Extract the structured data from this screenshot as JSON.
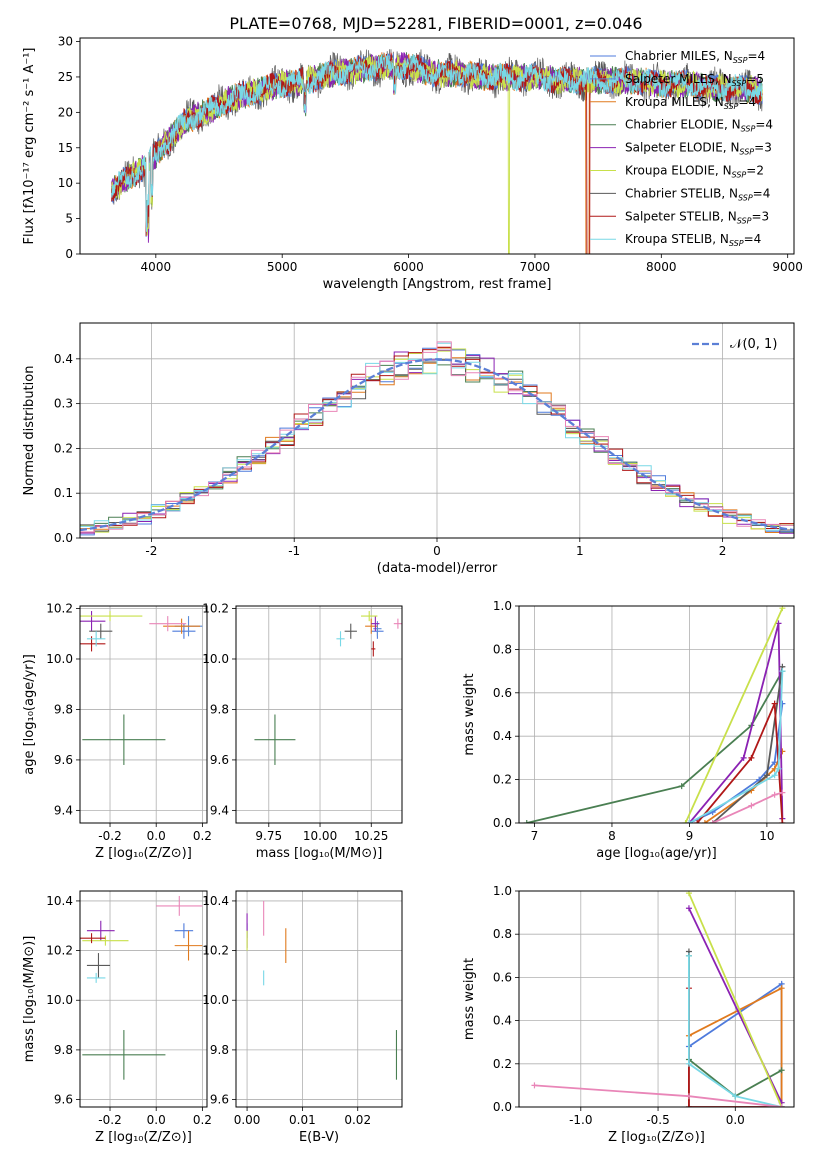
{
  "figure": {
    "title": "PLATE=0768, MJD=52281, FIBERID=0001, z=0.046"
  },
  "legend_names": [
    "Chabrier MILES",
    "Salpeter MILES",
    "Kroupa MILES",
    "Chabrier ELODIE",
    "Salpeter ELODIE",
    "Kroupa ELODIE",
    "Chabrier STELIB",
    "Salpeter STELIB",
    "Kroupa STELIB"
  ],
  "nssp": [
    4,
    5,
    4,
    4,
    3,
    2,
    4,
    3,
    4
  ],
  "nssp_prefix": "N",
  "nssp_sub": "SSP",
  "nssp_suffix": "=",
  "colors": [
    "#4f7bdc",
    "#5b8bd6",
    "#e07a1e",
    "#4a7f52",
    "#8b22b3",
    "#c8e04a",
    "#5a5a5a",
    "#b01818",
    "#78d8e6"
  ],
  "extra_colors": {
    "pink": "#e986b8",
    "green2": "#5f8a60"
  },
  "chart_data": [
    {
      "id": "spectrum",
      "type": "line",
      "xlabel": "wavelength [Angstrom, rest frame]",
      "ylabel": "Flux [fλ10⁻¹⁷ erg cm⁻² s⁻¹ A⁻¹]",
      "xlim": [
        3400,
        9050
      ],
      "ylim": [
        0,
        30.5
      ],
      "xticks": [
        4000,
        5000,
        6000,
        7000,
        8000,
        9000
      ],
      "yticks": [
        0,
        5,
        10,
        15,
        20,
        25,
        30
      ],
      "x_range": [
        3650,
        8800
      ],
      "envelope": {
        "x": [
          3650,
          3800,
          3950,
          4100,
          4250,
          4400,
          4600,
          4800,
          5000,
          5200,
          5400,
          5600,
          5800,
          6000,
          6200,
          6400,
          6600,
          6800,
          7000,
          7200,
          7400,
          7600,
          7800,
          8000,
          8200,
          8400,
          8600,
          8800
        ],
        "y": [
          9,
          11,
          13,
          16,
          19,
          20,
          22,
          23,
          24,
          24.5,
          25.5,
          26,
          26.5,
          26.5,
          25.5,
          25.5,
          25,
          25,
          25,
          24.5,
          24.5,
          24.5,
          24.5,
          24,
          24,
          23.5,
          23.5,
          23
        ]
      },
      "grid": false,
      "legend_position": "upper-right"
    },
    {
      "id": "residuals",
      "type": "histogram",
      "xlabel": "(data-model)/error",
      "ylabel": "Normed distribution",
      "xlim": [
        -2.5,
        2.5
      ],
      "ylim": [
        0,
        0.48
      ],
      "xticks": [
        -2,
        -1,
        0,
        1,
        2
      ],
      "yticks": [
        0,
        0.1,
        0.2,
        0.3,
        0.4
      ],
      "bin_width": 0.1,
      "normal_label": "𝒩(0, 1)",
      "grid": true,
      "legend_position": "upper-right"
    },
    {
      "id": "age-vs-Z",
      "type": "errorbar",
      "xlabel": "Z [log₁₀(Z/Z⊙)]",
      "ylabel": "age  [log₁₀(age/yr)]",
      "xlim": [
        -0.33,
        0.22
      ],
      "ylim": [
        9.35,
        10.21
      ],
      "xticks": [
        -0.2,
        0.0,
        0.2
      ],
      "yticks": [
        9.4,
        9.6,
        9.8,
        10.0,
        10.2
      ],
      "grid": true,
      "points": [
        {
          "c": 0,
          "x": 0.12,
          "y": 10.11,
          "xerr": 0.05,
          "yerr": 0.03
        },
        {
          "c": 1,
          "x": 0.14,
          "y": 10.13,
          "xerr": 0.06,
          "yerr": 0.04
        },
        {
          "c": 2,
          "x": 0.11,
          "y": 10.13,
          "xerr": 0.08,
          "yerr": 0.03
        },
        {
          "c": 3,
          "x": -0.14,
          "y": 9.68,
          "xerr": 0.18,
          "yerr": 0.1
        },
        {
          "c": 4,
          "x": -0.28,
          "y": 10.15,
          "xerr": 0.06,
          "yerr": 0.04
        },
        {
          "c": 5,
          "x": -0.2,
          "y": 10.17,
          "xerr": 0.14,
          "yerr": 0.02
        },
        {
          "c": 6,
          "x": -0.24,
          "y": 10.11,
          "xerr": 0.05,
          "yerr": 0.03
        },
        {
          "c": 7,
          "x": -0.28,
          "y": 10.06,
          "xerr": 0.06,
          "yerr": 0.03
        },
        {
          "c": 8,
          "x": -0.26,
          "y": 10.08,
          "xerr": 0.04,
          "yerr": 0.03
        },
        {
          "c": "pink",
          "x": 0.05,
          "y": 10.14,
          "xerr": 0.08,
          "yerr": 0.03
        }
      ]
    },
    {
      "id": "age-vs-mass",
      "type": "errorbar",
      "xlabel": "mass [log₁₀(M/M⊙)]",
      "ylabel": "",
      "xlim": [
        9.59,
        10.4
      ],
      "ylim": [
        9.35,
        10.21
      ],
      "xticks": [
        9.75,
        10.0,
        10.25
      ],
      "yticks": [
        9.4,
        9.6,
        9.8,
        10.0,
        10.2
      ],
      "grid": true,
      "points": [
        {
          "c": 0,
          "x": 10.28,
          "y": 10.11,
          "xerr": 0.03,
          "yerr": 0.03
        },
        {
          "c": 1,
          "x": 10.28,
          "y": 10.12,
          "xerr": 0.02,
          "yerr": 0.03
        },
        {
          "c": 2,
          "x": 10.25,
          "y": 10.13,
          "xerr": 0.03,
          "yerr": 0.03
        },
        {
          "c": 3,
          "x": 9.78,
          "y": 9.68,
          "xerr": 0.1,
          "yerr": 0.1
        },
        {
          "c": 4,
          "x": 10.27,
          "y": 10.14,
          "xerr": 0.02,
          "yerr": 0.03
        },
        {
          "c": 5,
          "x": 10.24,
          "y": 10.17,
          "xerr": 0.04,
          "yerr": 0.02
        },
        {
          "c": 6,
          "x": 10.15,
          "y": 10.11,
          "xerr": 0.03,
          "yerr": 0.03
        },
        {
          "c": 7,
          "x": 10.26,
          "y": 10.04,
          "xerr": 0.01,
          "yerr": 0.03
        },
        {
          "c": 8,
          "x": 10.1,
          "y": 10.08,
          "xerr": 0.02,
          "yerr": 0.03
        },
        {
          "c": "pink",
          "x": 10.38,
          "y": 10.14,
          "xerr": 0.02,
          "yerr": 0.02
        }
      ]
    },
    {
      "id": "weight-vs-age",
      "type": "line",
      "xlabel": "age  [log₁₀(age/yr)]",
      "ylabel": "mass weight",
      "xlim": [
        6.8,
        10.35
      ],
      "ylim": [
        0,
        1
      ],
      "xticks": [
        7,
        8,
        9,
        10
      ],
      "yticks": [
        0,
        0.2,
        0.4,
        0.6,
        0.8,
        1.0
      ],
      "grid": true,
      "series": [
        {
          "c": 0,
          "x": [
            9.0,
            9.3,
            9.9,
            10.1,
            10.2
          ],
          "y": [
            0.0,
            0.05,
            0.2,
            0.28,
            0.55
          ]
        },
        {
          "c": 2,
          "x": [
            9.2,
            9.8,
            10.1,
            10.2
          ],
          "y": [
            0.0,
            0.15,
            0.25,
            0.33
          ]
        },
        {
          "c": 3,
          "x": [
            6.9,
            8.9,
            9.8,
            10.2
          ],
          "y": [
            0.0,
            0.17,
            0.45,
            0.7
          ]
        },
        {
          "c": 4,
          "x": [
            9.0,
            9.7,
            10.15,
            10.2
          ],
          "y": [
            0.0,
            0.3,
            0.92,
            0.02
          ]
        },
        {
          "c": 5,
          "x": [
            8.95,
            10.2
          ],
          "y": [
            0.0,
            0.99
          ]
        },
        {
          "c": 6,
          "x": [
            9.3,
            10.0,
            10.2
          ],
          "y": [
            0.0,
            0.22,
            0.72
          ]
        },
        {
          "c": 7,
          "x": [
            9.1,
            9.8,
            10.1,
            10.2
          ],
          "y": [
            0.0,
            0.3,
            0.55,
            0.0
          ]
        },
        {
          "c": 8,
          "x": [
            9.0,
            10.1,
            10.15,
            10.2
          ],
          "y": [
            0.0,
            0.22,
            0.25,
            0.7
          ]
        },
        {
          "c": "pink",
          "x": [
            9.3,
            9.8,
            10.1,
            10.2
          ],
          "y": [
            0.0,
            0.08,
            0.13,
            0.14
          ]
        }
      ]
    },
    {
      "id": "mass-vs-Z",
      "type": "errorbar",
      "xlabel": "Z [log₁₀(Z/Z⊙)]",
      "ylabel": "mass [log₁₀(M/M⊙)]",
      "xlim": [
        -0.33,
        0.22
      ],
      "ylim": [
        9.57,
        10.44
      ],
      "xticks": [
        -0.2,
        0.0,
        0.2
      ],
      "yticks": [
        9.6,
        9.8,
        10.0,
        10.2,
        10.4
      ],
      "grid": true,
      "points": [
        {
          "c": 0,
          "x": 0.12,
          "y": 10.28,
          "xerr": 0.04,
          "yerr": 0.03
        },
        {
          "c": 2,
          "x": 0.14,
          "y": 10.22,
          "xerr": 0.06,
          "yerr": 0.06
        },
        {
          "c": 3,
          "x": -0.14,
          "y": 9.78,
          "xerr": 0.18,
          "yerr": 0.1
        },
        {
          "c": 4,
          "x": -0.24,
          "y": 10.28,
          "xerr": 0.06,
          "yerr": 0.04
        },
        {
          "c": 5,
          "x": -0.22,
          "y": 10.24,
          "xerr": 0.1,
          "yerr": 0.02
        },
        {
          "c": 6,
          "x": -0.25,
          "y": 10.14,
          "xerr": 0.05,
          "yerr": 0.05
        },
        {
          "c": 7,
          "x": -0.28,
          "y": 10.25,
          "xerr": 0.06,
          "yerr": 0.02
        },
        {
          "c": 8,
          "x": -0.26,
          "y": 10.09,
          "xerr": 0.04,
          "yerr": 0.02
        },
        {
          "c": "pink",
          "x": 0.1,
          "y": 10.38,
          "xerr": 0.1,
          "yerr": 0.04
        }
      ]
    },
    {
      "id": "mass-vs-EBV",
      "type": "errorbar",
      "xlabel": "E(B-V)",
      "ylabel": "",
      "xlim": [
        -0.002,
        0.028
      ],
      "ylim": [
        9.57,
        10.44
      ],
      "xticks": [
        0.0,
        0.01,
        0.02
      ],
      "yticks": [
        9.6,
        9.8,
        10.0,
        10.2,
        10.4
      ],
      "xtick_labels": [
        "0.00",
        "0.01",
        "0.02"
      ],
      "grid": true,
      "points": [
        {
          "c": 0,
          "x": 0.0,
          "y": 10.28,
          "xerr": 0,
          "yerr": 0.03
        },
        {
          "c": 2,
          "x": 0.007,
          "y": 10.22,
          "xerr": 0,
          "yerr": 0.07
        },
        {
          "c": 3,
          "x": 0.027,
          "y": 9.78,
          "xerr": 0,
          "yerr": 0.1
        },
        {
          "c": 4,
          "x": 0.0,
          "y": 10.28,
          "xerr": 0,
          "yerr": 0.07
        },
        {
          "c": 5,
          "x": 0.0,
          "y": 10.24,
          "xerr": 0,
          "yerr": 0.04
        },
        {
          "c": 8,
          "x": 0.003,
          "y": 10.09,
          "xerr": 0,
          "yerr": 0.03
        },
        {
          "c": "pink",
          "x": 0.003,
          "y": 10.33,
          "xerr": 0,
          "yerr": 0.07
        }
      ]
    },
    {
      "id": "weight-vs-Z",
      "type": "line",
      "xlabel": "Z [log₁₀(Z/Z⊙)]",
      "ylabel": "mass weight",
      "xlim": [
        -1.4,
        0.38
      ],
      "ylim": [
        0,
        1
      ],
      "xticks": [
        -1.0,
        -0.5,
        0.0
      ],
      "yticks": [
        0,
        0.2,
        0.4,
        0.6,
        0.8,
        1.0
      ],
      "grid": true,
      "series": [
        {
          "c": 0,
          "x": [
            -0.3,
            0.3,
            0.3
          ],
          "y": [
            0.28,
            0.57,
            0.0
          ]
        },
        {
          "c": 2,
          "x": [
            -0.3,
            0.3,
            0.3
          ],
          "y": [
            0.33,
            0.55,
            0.0
          ]
        },
        {
          "c": 3,
          "x": [
            -0.3,
            -0.3,
            0.0,
            0.3
          ],
          "y": [
            0.7,
            0.22,
            0.05,
            0.17
          ]
        },
        {
          "c": 4,
          "x": [
            -0.3,
            0.3
          ],
          "y": [
            0.92,
            0.02
          ]
        },
        {
          "c": 5,
          "x": [
            -0.3,
            0.3
          ],
          "y": [
            0.99,
            0.0
          ]
        },
        {
          "c": 6,
          "x": [
            -0.3,
            -0.3
          ],
          "y": [
            0.72,
            0.0
          ]
        },
        {
          "c": 7,
          "x": [
            -0.3,
            -0.3,
            0.3
          ],
          "y": [
            0.55,
            0.0,
            0.0
          ]
        },
        {
          "c": 8,
          "x": [
            -0.3,
            -0.3,
            0.0,
            0.3
          ],
          "y": [
            0.7,
            0.2,
            0.05,
            0.0
          ]
        },
        {
          "c": "pink",
          "x": [
            -1.3,
            -0.3,
            0.3
          ],
          "y": [
            0.1,
            0.05,
            0.0
          ]
        }
      ]
    }
  ]
}
